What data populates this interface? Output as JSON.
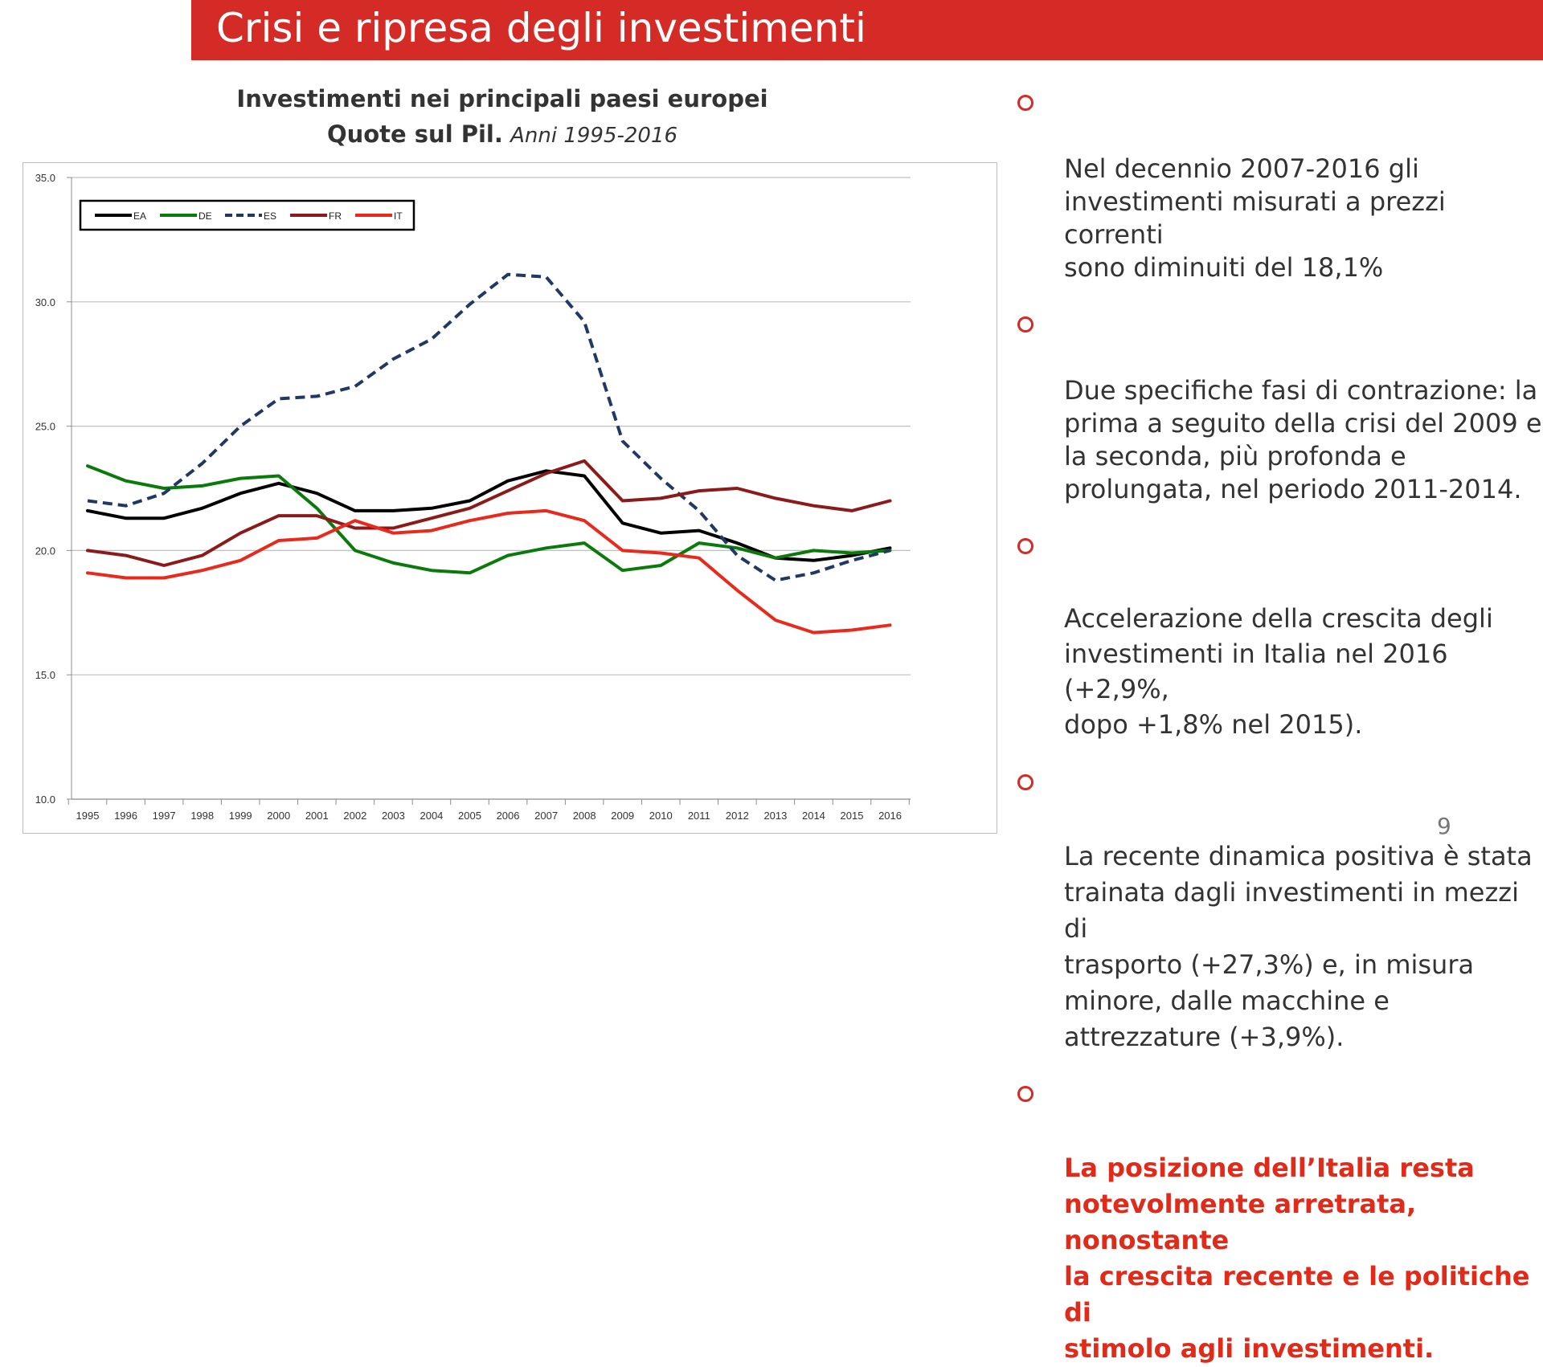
{
  "slide": {
    "title": "Crisi e ripresa degli investimenti",
    "page_number": "9"
  },
  "chart_heading": {
    "line1": "Investimenti nei principali paesi europei",
    "line2_bold": "Quote sul Pil.",
    "line2_italic": "Anni 1995-2016"
  },
  "bullets": [
    {
      "text": "Nel decennio 2007-2016 gli\ninvestimenti misurati a prezzi correnti\nsono diminuiti del 18,1%"
    },
    {
      "text": "Due specifiche fasi di contrazione: la\nprima a seguito della crisi del 2009 e\nla seconda, più profonda e\nprolungata, nel periodo 2011-2014."
    },
    {
      "text": "Accelerazione della crescita degli\ninvestimenti in Italia nel 2016 (+2,9%,\ndopo +1,8% nel 2015)."
    },
    {
      "text": "La recente dinamica positiva è stata\ntrainata dagli investimenti in mezzi di\ntrasporto (+27,3%) e, in misura\nminore, dalle macchine e\nattrezzature (+3,9%)."
    },
    {
      "text": "La posizione dell’Italia resta\nnotevolmente arretrata, nonostante\nla crescita recente e le politiche di\nstimolo agli investimenti.",
      "highlight": true
    }
  ],
  "colors": {
    "title_bar": "#d52b26",
    "bullet_ring": "#d52b26",
    "highlight_text": "#e02a1a"
  },
  "chart_data": {
    "type": "line",
    "x": [
      "1995",
      "1996",
      "1997",
      "1998",
      "1999",
      "2000",
      "2001",
      "2002",
      "2003",
      "2004",
      "2005",
      "2006",
      "2007",
      "2008",
      "2009",
      "2010",
      "2011",
      "2012",
      "2013",
      "2014",
      "2015",
      "2016"
    ],
    "ylim": [
      10,
      35
    ],
    "yticks": [
      "10.0",
      "15.0",
      "20.0",
      "25.0",
      "30.0",
      "35.0"
    ],
    "grid": true,
    "legend_position": "top-left",
    "series": [
      {
        "name": "EA",
        "color": "#000000",
        "dash": false,
        "values": [
          21.6,
          21.3,
          21.3,
          21.7,
          22.3,
          22.7,
          22.3,
          21.6,
          21.6,
          21.7,
          22.0,
          22.8,
          23.2,
          23.0,
          21.1,
          20.7,
          20.8,
          20.3,
          19.7,
          19.6,
          19.8,
          20.1
        ]
      },
      {
        "name": "DE",
        "color": "#0a7a0a",
        "dash": false,
        "values": [
          23.4,
          22.8,
          22.5,
          22.6,
          22.9,
          23.0,
          21.7,
          20.0,
          19.5,
          19.2,
          19.1,
          19.8,
          20.1,
          20.3,
          19.2,
          19.4,
          20.3,
          20.1,
          19.7,
          20.0,
          19.9,
          20.0
        ]
      },
      {
        "name": "ES",
        "color": "#1f3864",
        "dash": true,
        "values": [
          22.0,
          21.8,
          22.3,
          23.5,
          25.0,
          26.1,
          26.2,
          26.6,
          27.7,
          28.5,
          29.9,
          31.1,
          31.0,
          29.2,
          24.4,
          22.9,
          21.6,
          19.8,
          18.8,
          19.1,
          19.6,
          20.0
        ]
      },
      {
        "name": "FR",
        "color": "#8b1a1a",
        "dash": false,
        "values": [
          20.0,
          19.8,
          19.4,
          19.8,
          20.7,
          21.4,
          21.4,
          20.9,
          20.9,
          21.3,
          21.7,
          22.4,
          23.1,
          23.6,
          22.0,
          22.1,
          22.4,
          22.5,
          22.1,
          21.8,
          21.6,
          22.0
        ]
      },
      {
        "name": "IT",
        "color": "#e8291c",
        "dash": false,
        "values": [
          19.1,
          18.9,
          18.9,
          19.2,
          19.6,
          20.4,
          20.5,
          21.2,
          20.7,
          20.8,
          21.2,
          21.5,
          21.6,
          21.2,
          20.0,
          19.9,
          19.7,
          18.4,
          17.2,
          16.7,
          16.8,
          17.0
        ]
      }
    ]
  }
}
